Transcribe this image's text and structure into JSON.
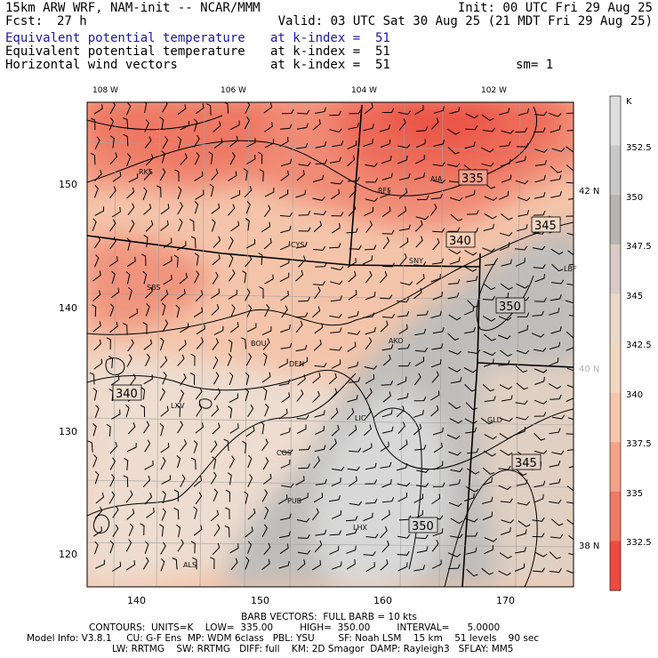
{
  "header": {
    "model_line": "15km ARW WRF, NAM-init -- NCAR/MMM",
    "init_line": "Init: 00 UTC Fri 29 Aug 25",
    "fcst_label": "Fcst:",
    "fcst_value": "27 h",
    "valid_line": "Valid: 03 UTC Sat 30 Aug 25 (21 MDT Fri 29 Aug 25)",
    "fields": [
      {
        "name": "Equivalent potential temperature",
        "level": "at k-index =  51",
        "extra": "",
        "color": "#1a1aa0"
      },
      {
        "name": "Equivalent potential temperature",
        "level": "at k-index =  51",
        "extra": "",
        "color": "#000000"
      },
      {
        "name": "Horizontal wind vectors",
        "level": "at k-index =  51",
        "extra": "sm= 1",
        "color": "#000000"
      }
    ]
  },
  "map": {
    "top_lon_labels": [
      "108 W",
      "106 W",
      "104 W",
      "102 W"
    ],
    "right_lat_labels": [
      "42 N",
      "40 N",
      "38 N"
    ],
    "left_y_ticks": [
      "150",
      "140",
      "130",
      "120"
    ],
    "bottom_x_ticks": [
      "140",
      "150",
      "160",
      "170"
    ],
    "station_labels": [
      "RKS",
      "RFF",
      "AIA",
      "CYS",
      "SNY",
      "LBF",
      "SBS",
      "BOU",
      "DEN",
      "AKO",
      "LXV",
      "LIC",
      "GLD",
      "COS",
      "PUB",
      "LHX",
      "ALS"
    ],
    "contour_labels": [
      "335",
      "345",
      "340",
      "350",
      "340",
      "345",
      "350"
    ],
    "colors": {
      "warm": "#f08a78",
      "mid": "#f6c9b0",
      "neutral": "#e6d8cc",
      "cool": "#bdbdbd",
      "coolest": "#e2e2e2"
    }
  },
  "colorbar": {
    "unit": "K",
    "labels": [
      "352.5",
      "350",
      "347.5",
      "345",
      "342.5",
      "340",
      "337.5",
      "335",
      "332.5"
    ],
    "colors": [
      "#dedede",
      "#c8c8c8",
      "#b8b4b0",
      "#d9cbc3",
      "#ead8c8",
      "#f3d8c0",
      "#f6c6ad",
      "#f4a38a",
      "#f07a66",
      "#f04a40"
    ]
  },
  "footer": {
    "barb_line": "BARB VECTORS:  FULL BARB = 10 kts",
    "contours_line": "CONTOURS:  UNITS=K    LOW=  335.00         HIGH=  350.00         INTERVAL=      5.0000",
    "model_info_1": "Model Info: V3.8.1     CU: G-F Ens  MP: WDM 6class   PBL: YSU        SF: Noah LSM    15 km    51 levels    90 sec",
    "model_info_2": "LW: RRTMG    SW: RRTMG   DIFF: full    KM: 2D Smagor  DAMP: Rayleigh3   SFLAY: MM5"
  }
}
